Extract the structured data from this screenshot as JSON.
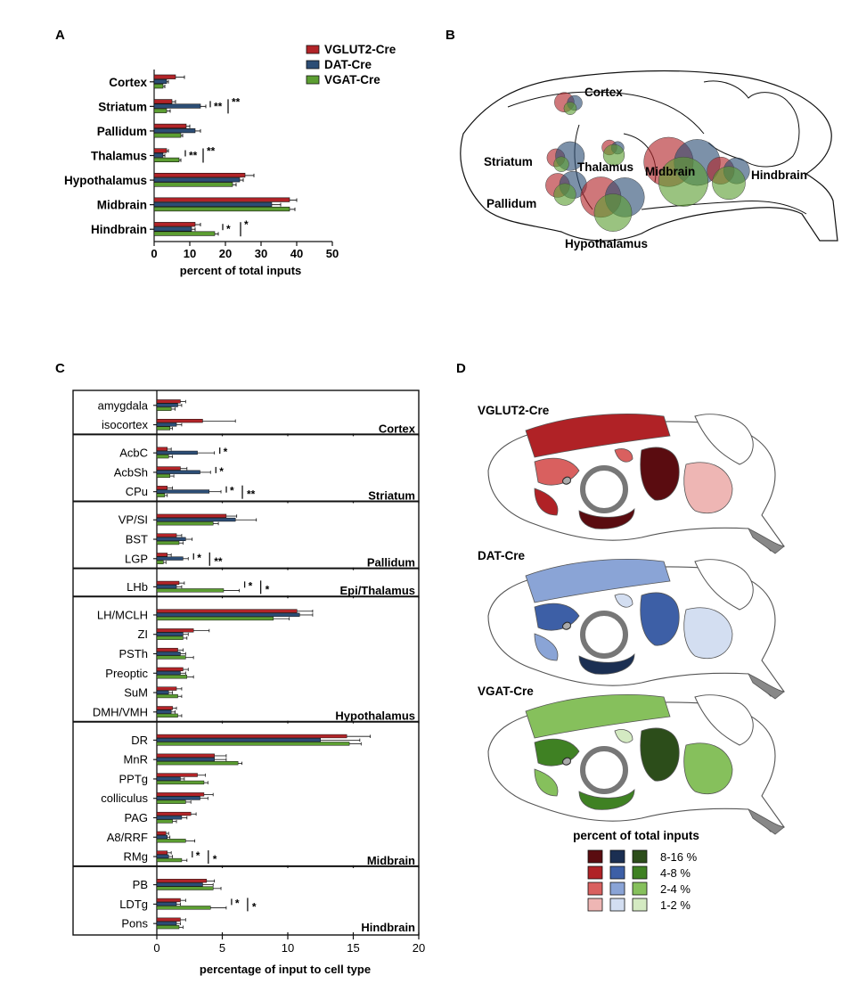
{
  "panels": {
    "a": "A",
    "b": "B",
    "c": "C",
    "d": "D"
  },
  "colors": {
    "vglut2": "#b22428",
    "dat": "#2c4d75",
    "vgat": "#5c9e32"
  },
  "legend": [
    "VGLUT2-Cre",
    "DAT-Cre",
    "VGAT-Cre"
  ],
  "chart_data": [
    {
      "type": "bar",
      "orientation": "horizontal",
      "xlabel": "percent of total inputs",
      "xlim": [
        0,
        50
      ],
      "xticks": [
        0,
        10,
        20,
        30,
        40,
        50
      ],
      "categories": [
        "Cortex",
        "Striatum",
        "Pallidum",
        "Thalamus",
        "Hypothalamus",
        "Midbrain",
        "Hindbrain"
      ],
      "series": [
        {
          "name": "VGLUT2-Cre",
          "values": [
            6,
            5,
            9,
            3.5,
            25.5,
            38,
            11.5
          ],
          "errors": [
            2.5,
            1,
            1,
            0.5,
            2.5,
            2,
            1.5
          ]
        },
        {
          "name": "DAT-Cre",
          "values": [
            3.5,
            13,
            11.5,
            2.5,
            24,
            33,
            10.5
          ],
          "errors": [
            0.5,
            1.5,
            1.5,
            0.5,
            1,
            2.5,
            1
          ]
        },
        {
          "name": "VGAT-Cre",
          "values": [
            2.5,
            3.5,
            7.5,
            7,
            22,
            38,
            17
          ],
          "errors": [
            0.5,
            1,
            0.5,
            0.5,
            1,
            1.5,
            1
          ]
        }
      ],
      "significance": [
        {
          "category": "Striatum",
          "inner": "**",
          "outer": "**"
        },
        {
          "category": "Thalamus",
          "inner": "**",
          "outer": "**"
        },
        {
          "category": "Hindbrain",
          "inner": "*",
          "outer": "*"
        }
      ]
    },
    {
      "type": "bar",
      "orientation": "horizontal",
      "xlabel": "percentage of input to cell type",
      "xlim": [
        0,
        20
      ],
      "xticks": [
        0,
        5,
        10,
        15,
        20
      ],
      "groups": [
        {
          "name": "Cortex",
          "categories": [
            "amygdala",
            "isocortex"
          ]
        },
        {
          "name": "Striatum",
          "categories": [
            "AcbC",
            "AcbSh",
            "CPu"
          ]
        },
        {
          "name": "Pallidum",
          "categories": [
            "VP/SI",
            "BST",
            "LGP"
          ]
        },
        {
          "name": "Epi/Thalamus",
          "categories": [
            "LHb"
          ]
        },
        {
          "name": "Hypothalamus",
          "categories": [
            "LH/MCLH",
            "ZI",
            "PSTh",
            "Preoptic",
            "SuM",
            "DMH/VMH"
          ]
        },
        {
          "name": "Midbrain",
          "categories": [
            "DR",
            "MnR",
            "PPTg",
            "colliculus",
            "PAG",
            "A8/RRF",
            "RMg"
          ]
        },
        {
          "name": "Hindbrain",
          "categories": [
            "PB",
            "LDTg",
            "Pons"
          ]
        }
      ],
      "series": [
        {
          "name": "VGLUT2-Cre",
          "values": [
            1.8,
            3.5,
            0.8,
            1.8,
            0.8,
            5.3,
            1.5,
            0.8,
            1.7,
            10.7,
            2.8,
            1.6,
            2.0,
            1.5,
            1.2,
            14.5,
            4.4,
            3.1,
            3.6,
            2.6,
            0.7,
            0.8,
            3.8,
            1.8,
            1.8
          ],
          "errors": [
            0.4,
            2.5,
            0.3,
            0.5,
            0.4,
            0.8,
            0.4,
            0.3,
            0.4,
            1.2,
            1.2,
            0.4,
            0.4,
            0.4,
            0.3,
            1.8,
            0.9,
            0.6,
            0.7,
            0.4,
            0.2,
            0.3,
            0.6,
            0.4,
            0.4
          ]
        },
        {
          "name": "DAT-Cre",
          "values": [
            1.6,
            1.5,
            3.1,
            3.3,
            4.0,
            6.0,
            2.2,
            2.0,
            1.5,
            10.9,
            2.0,
            1.8,
            1.8,
            0.9,
            1.1,
            12.5,
            4.4,
            1.8,
            3.3,
            1.9,
            0.8,
            0.9,
            3.5,
            1.5,
            1.5
          ],
          "errors": [
            0.3,
            0.4,
            1.3,
            0.8,
            0.9,
            1.6,
            0.5,
            0.4,
            0.4,
            1.0,
            0.4,
            0.4,
            0.4,
            0.3,
            0.3,
            3.0,
            0.9,
            0.3,
            0.6,
            0.4,
            0.2,
            0.3,
            0.8,
            0.3,
            0.3
          ]
        },
        {
          "name": "VGAT-Cre",
          "values": [
            1.1,
            1.0,
            0.9,
            1.0,
            0.6,
            4.3,
            1.7,
            0.5,
            5.1,
            8.9,
            2.0,
            2.2,
            2.3,
            1.6,
            1.6,
            14.7,
            6.2,
            3.6,
            2.2,
            1.2,
            2.2,
            1.9,
            4.3,
            4.1,
            1.7
          ],
          "errors": [
            0.3,
            0.2,
            0.3,
            0.3,
            0.2,
            0.4,
            0.3,
            0.2,
            1.2,
            1.2,
            0.3,
            0.6,
            0.5,
            0.3,
            0.3,
            0.9,
            0.3,
            0.3,
            0.4,
            0.3,
            0.7,
            0.4,
            0.6,
            1.2,
            0.3
          ]
        }
      ],
      "significance": [
        {
          "category": "AcbC",
          "inner": "*"
        },
        {
          "category": "AcbSh",
          "inner": "*"
        },
        {
          "category": "CPu",
          "inner": "*",
          "outer": "**"
        },
        {
          "category": "LGP",
          "inner": "*",
          "outer": "**"
        },
        {
          "category": "LHb",
          "inner": "*",
          "outer": "*"
        },
        {
          "category": "RMg",
          "inner": "*",
          "outer": "*"
        },
        {
          "category": "LDTg",
          "inner": "*",
          "outer": "*"
        }
      ]
    }
  ],
  "panel_b": {
    "regions": [
      {
        "label": "Cortex",
        "values": [
          6,
          3.5,
          2.5
        ]
      },
      {
        "label": "Striatum",
        "values": [
          5,
          13,
          3.5
        ]
      },
      {
        "label": "Pallidum",
        "values": [
          9,
          11.5,
          7.5
        ]
      },
      {
        "label": "Thalamus",
        "values": [
          3.5,
          2.5,
          7
        ]
      },
      {
        "label": "Hypothalamus",
        "values": [
          25.5,
          24,
          22
        ]
      },
      {
        "label": "Midbrain",
        "values": [
          38,
          33,
          38
        ]
      },
      {
        "label": "Hindbrain",
        "values": [
          11.5,
          10.5,
          17
        ]
      }
    ]
  },
  "panel_d": {
    "maps": [
      "VGLUT2-Cre",
      "DAT-Cre",
      "VGAT-Cre"
    ],
    "legend_title": "percent of total inputs",
    "bins": [
      "8-16 %",
      "4-8 %",
      "2-4 %",
      "1-2 %"
    ],
    "shades": {
      "vglut2": [
        "#5a0c10",
        "#b02226",
        "#d9605f",
        "#eeb6b4"
      ],
      "dat": [
        "#1b2f52",
        "#3d5fa6",
        "#8aa4d6",
        "#d3def1"
      ],
      "vgat": [
        "#2c4d1a",
        "#3f8123",
        "#86c05c",
        "#d4eac2"
      ]
    }
  }
}
